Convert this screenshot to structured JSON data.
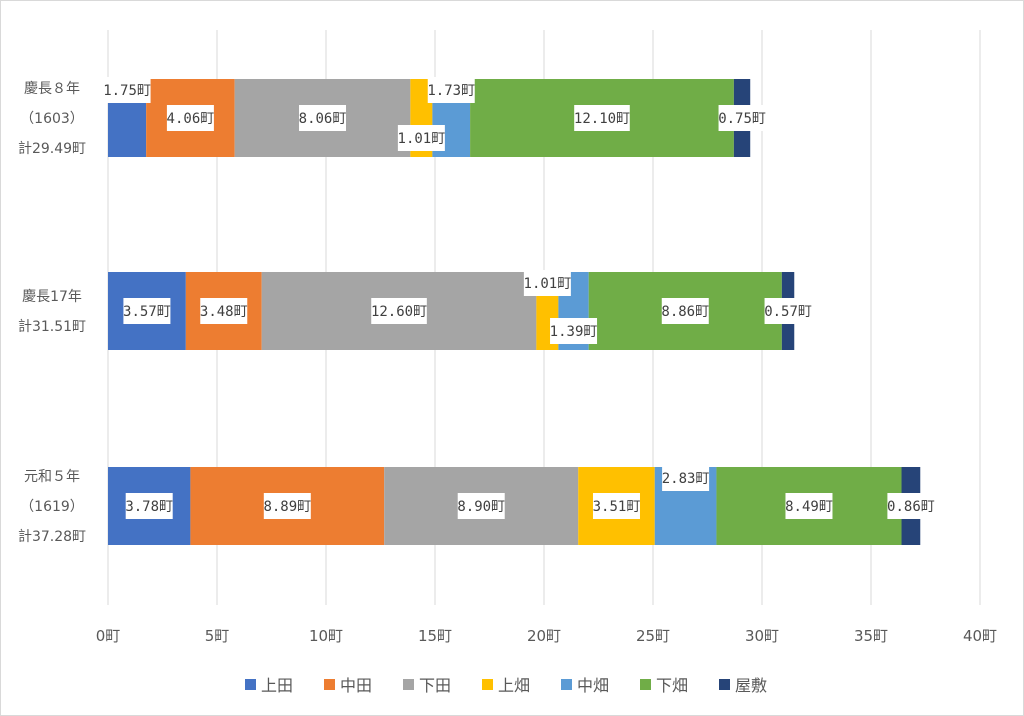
{
  "chart_data": {
    "type": "bar",
    "orientation": "horizontal",
    "stacked": true,
    "title": "",
    "unit": "町",
    "categories": [
      {
        "lines": [
          "慶長８年",
          "（1603）",
          "計29.49町"
        ]
      },
      {
        "lines": [
          "慶長17年",
          "計31.51町"
        ]
      },
      {
        "lines": [
          "元和５年",
          "（1619）",
          "計37.28町"
        ]
      }
    ],
    "series": [
      {
        "name": "上田",
        "color": "#4472C4",
        "values": [
          1.75,
          3.57,
          3.78
        ]
      },
      {
        "name": "中田",
        "color": "#ED7D31",
        "values": [
          4.06,
          3.48,
          8.89
        ]
      },
      {
        "name": "下田",
        "color": "#A5A5A5",
        "values": [
          8.06,
          12.6,
          8.9
        ]
      },
      {
        "name": "上畑",
        "color": "#FFC000",
        "values": [
          1.01,
          1.01,
          3.51
        ]
      },
      {
        "name": "中畑",
        "color": "#5B9BD5",
        "values": [
          1.73,
          1.39,
          2.83
        ]
      },
      {
        "name": "下畑",
        "color": "#70AD47",
        "values": [
          12.1,
          8.86,
          8.49
        ]
      },
      {
        "name": "屋敷",
        "color": "#264478",
        "values": [
          0.75,
          0.57,
          0.86
        ]
      }
    ],
    "xlim": [
      0,
      40
    ],
    "xticks": [
      0,
      5,
      10,
      15,
      20,
      25,
      30,
      35,
      40
    ],
    "xtick_labels": [
      "0町",
      "5町",
      "10町",
      "15町",
      "20町",
      "25町",
      "30町",
      "35町",
      "40町"
    ],
    "grid": true,
    "legend": "bottom"
  }
}
